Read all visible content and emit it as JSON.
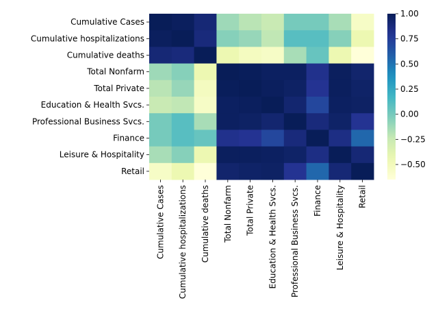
{
  "chart_data": {
    "type": "heatmap",
    "title": "",
    "xlabel": "",
    "ylabel": "",
    "labels": [
      "Cumulative Cases",
      "Cumulative hospitalizations",
      "Cumulative deaths",
      "Total Nonfarm",
      "Total Private",
      "Education & Health Svcs.",
      "Professional Business Svcs.",
      "Finance",
      "Leisure & Hospitality",
      "Retail"
    ],
    "matrix": [
      [
        1.0,
        0.98,
        0.9,
        -0.12,
        -0.2,
        -0.25,
        0.0,
        0.0,
        -0.15,
        -0.55
      ],
      [
        0.98,
        1.0,
        0.88,
        -0.05,
        -0.1,
        -0.22,
        0.1,
        0.1,
        -0.05,
        -0.45
      ],
      [
        0.9,
        0.88,
        1.0,
        -0.45,
        -0.52,
        -0.55,
        -0.15,
        0.05,
        -0.45,
        -0.65
      ],
      [
        -0.12,
        -0.05,
        -0.45,
        1.0,
        0.99,
        0.97,
        0.97,
        0.82,
        0.98,
        0.93
      ],
      [
        -0.2,
        -0.1,
        -0.52,
        0.99,
        1.0,
        0.98,
        0.96,
        0.8,
        0.98,
        0.95
      ],
      [
        -0.25,
        -0.22,
        -0.55,
        0.97,
        0.98,
        1.0,
        0.92,
        0.7,
        0.97,
        0.96
      ],
      [
        0.0,
        0.1,
        -0.15,
        0.97,
        0.96,
        0.92,
        1.0,
        0.88,
        0.95,
        0.8
      ],
      [
        0.0,
        0.1,
        0.05,
        0.82,
        0.8,
        0.7,
        0.88,
        1.0,
        0.85,
        0.55
      ],
      [
        -0.15,
        -0.05,
        -0.45,
        0.98,
        0.98,
        0.97,
        0.95,
        0.85,
        1.0,
        0.9
      ],
      [
        -0.55,
        -0.45,
        -0.65,
        0.93,
        0.95,
        0.96,
        0.8,
        0.55,
        0.9,
        1.0
      ]
    ],
    "colormap": "YlGnBu",
    "vmin": -0.65,
    "vmax": 1.0,
    "colorbar_ticks": [
      "1.00",
      "0.75",
      "0.50",
      "0.25",
      "0.00",
      "−0.25",
      "−0.50"
    ],
    "colorbar_tick_values": [
      1.0,
      0.75,
      0.5,
      0.25,
      0.0,
      -0.25,
      -0.5
    ],
    "grid": false,
    "legend": "colorbar-right"
  }
}
